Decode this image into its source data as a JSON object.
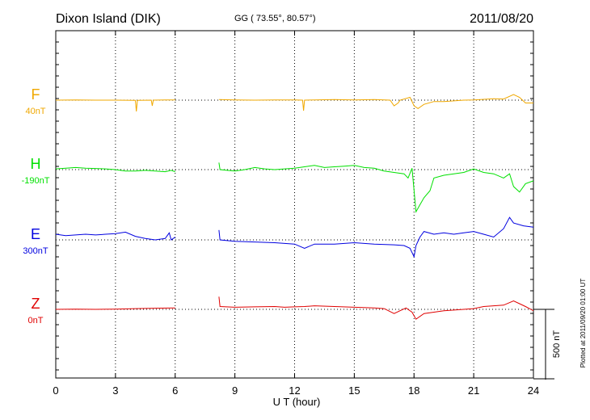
{
  "header": {
    "station": "Dixon Island (DIK)",
    "coords": "GG ( 73.55°,  80.57°)",
    "date": "2011/08/20"
  },
  "footer": {
    "plotted": "Plotted at 2011/09/20 01:00 UT"
  },
  "chart_data": {
    "type": "line",
    "xlabel": "U T (hour)",
    "xlim": [
      0,
      24
    ],
    "xticks": [
      "0",
      "3",
      "6",
      "9",
      "12",
      "15",
      "18",
      "21",
      "24"
    ],
    "vertical_grid_hours": [
      3,
      6,
      9,
      12,
      15,
      18,
      21
    ],
    "scale_bar_label": "500 nT",
    "scale_bar_nT": 500,
    "data_gap_hours": [
      6,
      8.2
    ],
    "series": [
      {
        "name": "F",
        "baseline_label": "40nT",
        "color": "#f0a800",
        "points": [
          [
            0,
            0
          ],
          [
            1,
            2
          ],
          [
            2,
            0
          ],
          [
            3,
            0
          ],
          [
            4,
            -2
          ],
          [
            4.05,
            -80
          ],
          [
            4.1,
            -2
          ],
          [
            4.8,
            0
          ],
          [
            4.85,
            -40
          ],
          [
            4.9,
            0
          ],
          [
            5.5,
            2
          ],
          [
            6,
            2
          ],
          [
            8.2,
            4
          ],
          [
            9,
            2
          ],
          [
            10,
            0
          ],
          [
            11,
            2
          ],
          [
            12,
            2
          ],
          [
            12.4,
            0
          ],
          [
            12.45,
            -75
          ],
          [
            12.5,
            0
          ],
          [
            13,
            2
          ],
          [
            14,
            4
          ],
          [
            15,
            2
          ],
          [
            16,
            4
          ],
          [
            16.8,
            0
          ],
          [
            17,
            -40
          ],
          [
            17.2,
            -20
          ],
          [
            17.3,
            0
          ],
          [
            17.8,
            20
          ],
          [
            18,
            -40
          ],
          [
            18.2,
            -60
          ],
          [
            18.5,
            -30
          ],
          [
            19,
            -10
          ],
          [
            19.5,
            -10
          ],
          [
            20,
            -5
          ],
          [
            20.5,
            0
          ],
          [
            21,
            2
          ],
          [
            22,
            10
          ],
          [
            22.5,
            8
          ],
          [
            23,
            40
          ],
          [
            23.3,
            20
          ],
          [
            23.6,
            -20
          ],
          [
            24,
            -20
          ]
        ]
      },
      {
        "name": "H",
        "baseline_label": "-190nT",
        "color": "#00e000",
        "points": [
          [
            0,
            5
          ],
          [
            0.5,
            10
          ],
          [
            1,
            15
          ],
          [
            1.5,
            10
          ],
          [
            2,
            8
          ],
          [
            2.5,
            5
          ],
          [
            3,
            0
          ],
          [
            3.5,
            -10
          ],
          [
            4,
            -10
          ],
          [
            4.5,
            -5
          ],
          [
            5,
            -10
          ],
          [
            5.5,
            -15
          ],
          [
            5.8,
            -5
          ],
          [
            6,
            -15
          ],
          [
            8.2,
            50
          ],
          [
            8.25,
            0
          ],
          [
            9,
            -10
          ],
          [
            9.5,
            0
          ],
          [
            10,
            15
          ],
          [
            10.5,
            5
          ],
          [
            11,
            0
          ],
          [
            11.5,
            5
          ],
          [
            12,
            10
          ],
          [
            12.5,
            20
          ],
          [
            13,
            30
          ],
          [
            13.5,
            15
          ],
          [
            14,
            20
          ],
          [
            14.5,
            25
          ],
          [
            15,
            30
          ],
          [
            15.5,
            15
          ],
          [
            16,
            10
          ],
          [
            16.5,
            -10
          ],
          [
            17,
            -20
          ],
          [
            17.5,
            -30
          ],
          [
            17.7,
            -60
          ],
          [
            17.9,
            10
          ],
          [
            18.1,
            -300
          ],
          [
            18.3,
            -250
          ],
          [
            18.5,
            -200
          ],
          [
            18.8,
            -150
          ],
          [
            19,
            -60
          ],
          [
            19.5,
            -40
          ],
          [
            20,
            -30
          ],
          [
            20.5,
            -20
          ],
          [
            21,
            5
          ],
          [
            21.5,
            -20
          ],
          [
            22,
            -30
          ],
          [
            22.5,
            -60
          ],
          [
            22.8,
            -30
          ],
          [
            23,
            -120
          ],
          [
            23.3,
            -160
          ],
          [
            23.6,
            -100
          ],
          [
            24,
            -80
          ]
        ]
      },
      {
        "name": "E",
        "baseline_label": "300nT",
        "color": "#0000e0",
        "points": [
          [
            0,
            40
          ],
          [
            0.5,
            30
          ],
          [
            1,
            35
          ],
          [
            1.5,
            40
          ],
          [
            2,
            35
          ],
          [
            2.5,
            40
          ],
          [
            3,
            45
          ],
          [
            3.5,
            55
          ],
          [
            4,
            25
          ],
          [
            4.5,
            10
          ],
          [
            5,
            0
          ],
          [
            5.5,
            10
          ],
          [
            5.7,
            50
          ],
          [
            5.8,
            0
          ],
          [
            6,
            20
          ],
          [
            8.2,
            70
          ],
          [
            8.25,
            0
          ],
          [
            9,
            -10
          ],
          [
            10,
            -15
          ],
          [
            11,
            -20
          ],
          [
            12,
            -30
          ],
          [
            12.5,
            -60
          ],
          [
            13,
            -30
          ],
          [
            14,
            -30
          ],
          [
            15,
            -20
          ],
          [
            16,
            -30
          ],
          [
            17,
            -35
          ],
          [
            17.5,
            -40
          ],
          [
            17.8,
            -60
          ],
          [
            18,
            -120
          ],
          [
            18.1,
            -40
          ],
          [
            18.3,
            20
          ],
          [
            18.5,
            60
          ],
          [
            19,
            40
          ],
          [
            19.5,
            50
          ],
          [
            20,
            40
          ],
          [
            20.5,
            50
          ],
          [
            21,
            60
          ],
          [
            21.5,
            40
          ],
          [
            22,
            20
          ],
          [
            22.5,
            80
          ],
          [
            22.8,
            160
          ],
          [
            23,
            120
          ],
          [
            23.5,
            100
          ],
          [
            24,
            90
          ]
        ]
      },
      {
        "name": "Z",
        "baseline_label": "0nT",
        "color": "#e00000",
        "points": [
          [
            0,
            0
          ],
          [
            1,
            2
          ],
          [
            2,
            0
          ],
          [
            3,
            2
          ],
          [
            4,
            5
          ],
          [
            5,
            8
          ],
          [
            6,
            10
          ],
          [
            8.2,
            90
          ],
          [
            8.25,
            20
          ],
          [
            9,
            15
          ],
          [
            10,
            18
          ],
          [
            11,
            20
          ],
          [
            11.5,
            15
          ],
          [
            12,
            18
          ],
          [
            12.5,
            20
          ],
          [
            13,
            25
          ],
          [
            14,
            20
          ],
          [
            15,
            15
          ],
          [
            16,
            10
          ],
          [
            16.5,
            5
          ],
          [
            17,
            -30
          ],
          [
            17.3,
            -10
          ],
          [
            17.6,
            10
          ],
          [
            17.9,
            -20
          ],
          [
            18.1,
            -70
          ],
          [
            18.5,
            -30
          ],
          [
            19,
            -20
          ],
          [
            19.5,
            -10
          ],
          [
            20,
            -5
          ],
          [
            20.5,
            0
          ],
          [
            21,
            5
          ],
          [
            21.5,
            20
          ],
          [
            22,
            25
          ],
          [
            22.5,
            30
          ],
          [
            23,
            60
          ],
          [
            23.3,
            40
          ],
          [
            23.6,
            20
          ],
          [
            24,
            -10
          ]
        ]
      }
    ]
  }
}
